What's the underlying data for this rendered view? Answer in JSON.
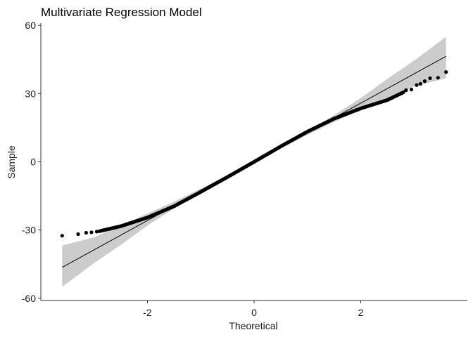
{
  "chart_data": {
    "type": "scatter",
    "subtype": "qq-plot",
    "title": "Multivariate Regression Model",
    "xlabel": "Theoretical",
    "ylabel": "Sample",
    "xlim": [
      -4.0,
      4.0
    ],
    "ylim": [
      -61,
      61
    ],
    "xticks": [
      -2,
      0,
      2
    ],
    "yticks": [
      -60,
      -30,
      0,
      30,
      60
    ],
    "grid": false,
    "reference_line": {
      "slope": 12.9,
      "intercept": 0,
      "x_range": [
        -3.6,
        3.6
      ]
    },
    "confidence_band": {
      "x": [
        -3.6,
        -3.0,
        -2.5,
        -2.0,
        -1.5,
        -1.0,
        -0.5,
        0.0,
        0.5,
        1.0,
        1.5,
        2.0,
        2.5,
        3.0,
        3.6
      ],
      "lower": [
        -55.0,
        -44.5,
        -36.5,
        -28.0,
        -20.5,
        -13.5,
        -6.8,
        0.0,
        6.0,
        11.8,
        17.5,
        22.8,
        28.0,
        33.2,
        36.8
      ],
      "upper": [
        -36.8,
        -33.2,
        -28.0,
        -22.8,
        -17.5,
        -11.8,
        -6.0,
        0.0,
        6.8,
        13.5,
        20.5,
        28.0,
        36.5,
        44.5,
        55.0
      ]
    },
    "extreme_points": [
      {
        "x": -3.6,
        "y": -32.5
      },
      {
        "x": -3.3,
        "y": -31.8
      },
      {
        "x": -3.15,
        "y": -31.2
      },
      {
        "x": -3.05,
        "y": -31.0
      },
      {
        "x": -2.95,
        "y": -30.7
      },
      {
        "x": 2.85,
        "y": 31.5
      },
      {
        "x": 2.95,
        "y": 31.8
      },
      {
        "x": 3.05,
        "y": 33.8
      },
      {
        "x": 3.12,
        "y": 34.3
      },
      {
        "x": 3.2,
        "y": 35.5
      },
      {
        "x": 3.3,
        "y": 36.8
      },
      {
        "x": 3.45,
        "y": 37.0
      },
      {
        "x": 3.6,
        "y": 39.5
      }
    ],
    "curve": {
      "x": [
        -2.9,
        -2.5,
        -2.0,
        -1.5,
        -1.0,
        -0.5,
        0.0,
        0.5,
        1.0,
        1.5,
        2.0,
        2.5,
        2.8
      ],
      "y": [
        -30.5,
        -28.3,
        -24.5,
        -19.5,
        -13.2,
        -6.7,
        0.0,
        6.8,
        13.3,
        19.0,
        23.5,
        27.2,
        30.6
      ]
    }
  }
}
